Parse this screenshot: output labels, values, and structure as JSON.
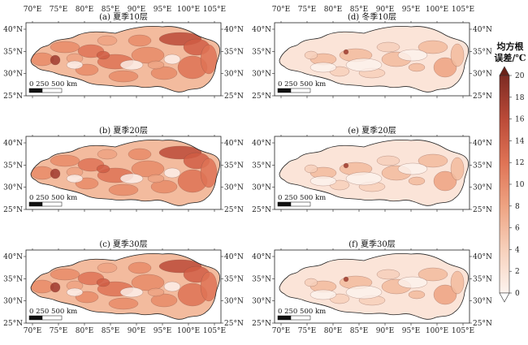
{
  "panels": [
    {
      "title": "(a) 夏季10层",
      "level": "high"
    },
    {
      "title": "(d) 冬季10层",
      "level": "low"
    },
    {
      "title": "(b) 夏季20层",
      "level": "high"
    },
    {
      "title": "(e) 夏季20层",
      "level": "low"
    },
    {
      "title": "(c) 夏季30层",
      "level": "high"
    },
    {
      "title": "(f) 夏季30层",
      "level": "low"
    }
  ],
  "x_ticks": [
    "70°E",
    "75°E",
    "80°E",
    "85°E",
    "90°E",
    "95°E",
    "100°E",
    "105°E"
  ],
  "y_ticks": [
    "40°N",
    "35°N",
    "30°N",
    "25°N"
  ],
  "scale_bar": {
    "label": "0    250 500 km"
  },
  "colorbar": {
    "title_line1": "均方根",
    "title_line2": "误差/℃",
    "ticks": [
      "0",
      "2",
      "4",
      "6",
      "8",
      "10",
      "12",
      "14",
      "16",
      "18",
      "20"
    ],
    "colors": [
      "#fdf3ee",
      "#fbe4d8",
      "#f7d0bb",
      "#f3bb9e",
      "#eea382",
      "#e88b68",
      "#df7355",
      "#d05d45",
      "#bb4a38",
      "#9f3a2e",
      "#7d2b23"
    ],
    "over_color": "#6a2219",
    "under_color": "#ffffff"
  }
}
